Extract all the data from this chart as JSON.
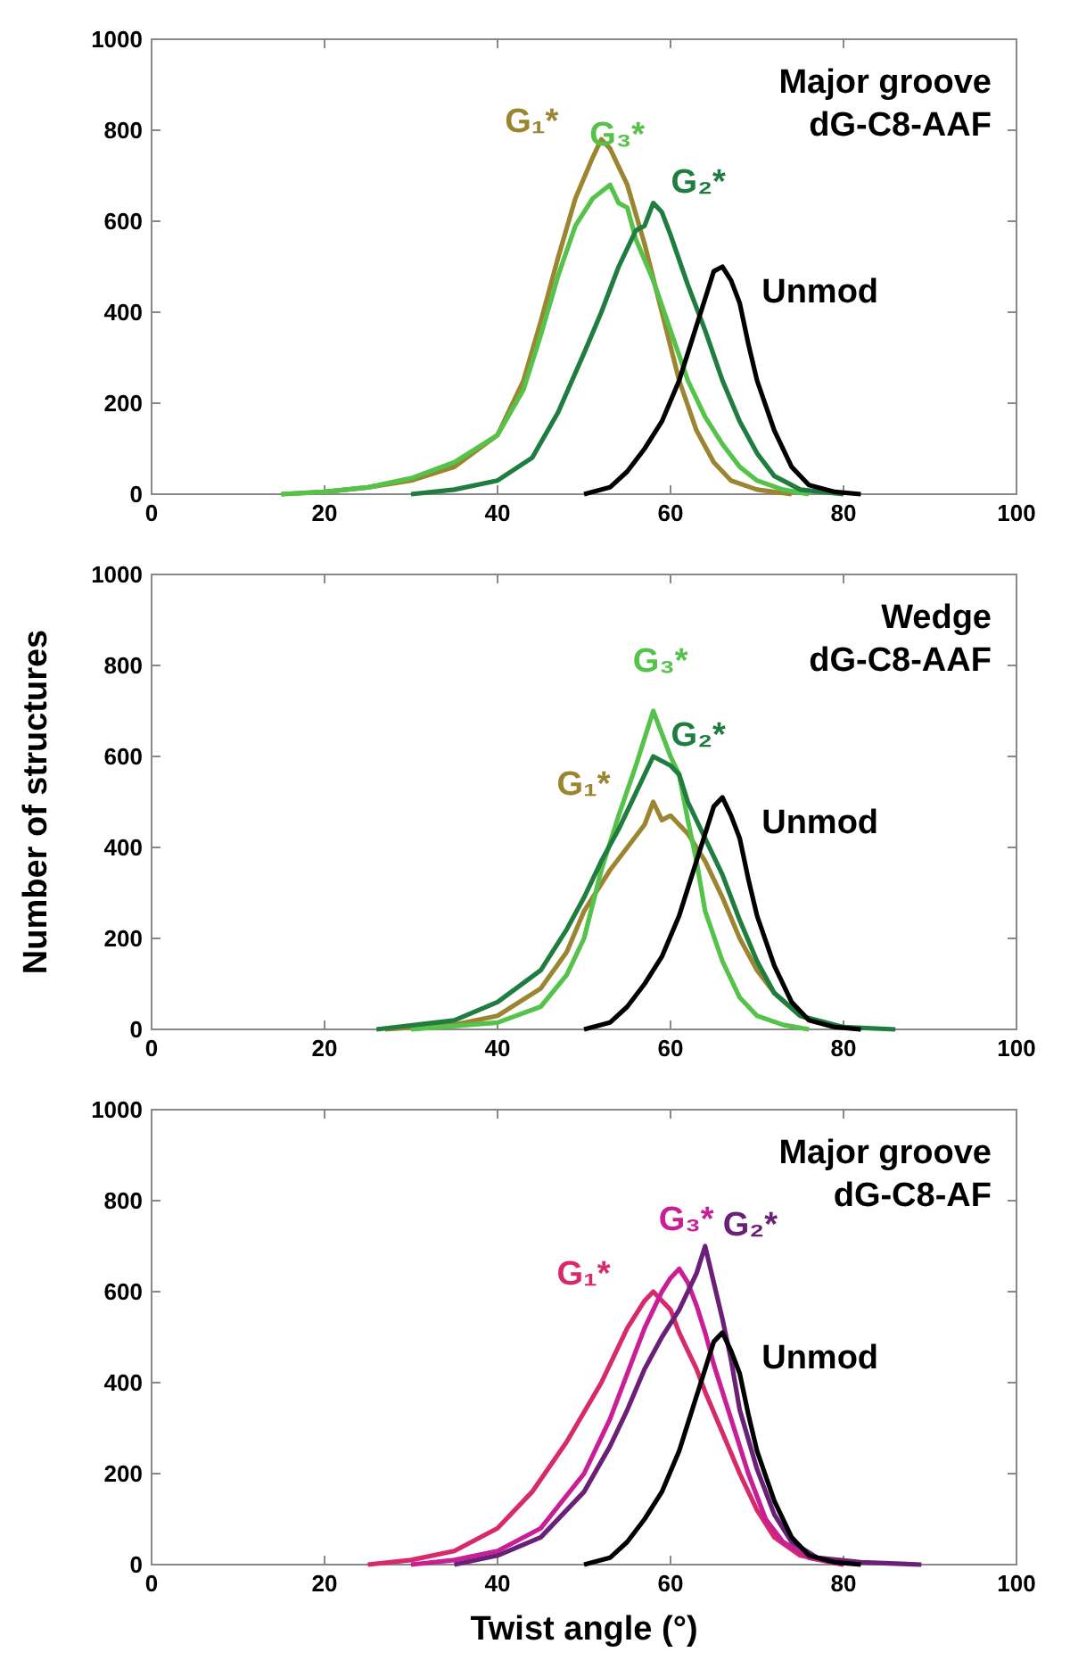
{
  "chart_data": [
    {
      "type": "line",
      "annotations": [
        "Major groove",
        "dG-C8-AAF"
      ],
      "xlim": [
        0,
        100
      ],
      "ylim": [
        0,
        1000
      ],
      "xticks": [
        0,
        20,
        40,
        60,
        80,
        100
      ],
      "yticks": [
        0,
        200,
        400,
        600,
        800,
        1000
      ],
      "grid": false,
      "series": [
        {
          "name": "G₁*",
          "color": "#9b8530",
          "x": [
            15,
            20,
            25,
            30,
            35,
            40,
            43,
            45,
            47,
            49,
            51,
            52,
            53,
            54,
            55,
            57,
            59,
            61,
            63,
            65,
            67,
            70,
            74
          ],
          "values": [
            0,
            5,
            15,
            30,
            60,
            130,
            250,
            380,
            520,
            650,
            740,
            780,
            760,
            720,
            680,
            550,
            400,
            250,
            140,
            70,
            30,
            10,
            0
          ]
        },
        {
          "name": "G₃*",
          "color": "#55c24a",
          "x": [
            15,
            20,
            25,
            30,
            35,
            40,
            43,
            45,
            47,
            49,
            51,
            53,
            54,
            55,
            56,
            58,
            60,
            62,
            64,
            66,
            68,
            70,
            73,
            76
          ],
          "values": [
            0,
            5,
            15,
            35,
            70,
            130,
            230,
            350,
            480,
            590,
            650,
            680,
            640,
            630,
            560,
            470,
            360,
            250,
            170,
            110,
            60,
            30,
            10,
            0
          ]
        },
        {
          "name": "G₂*",
          "color": "#1f7d3f",
          "x": [
            30,
            35,
            40,
            44,
            47,
            50,
            52,
            54,
            56,
            57,
            58,
            59,
            60,
            62,
            64,
            66,
            68,
            70,
            72,
            75,
            80
          ],
          "values": [
            0,
            10,
            30,
            80,
            180,
            310,
            400,
            500,
            580,
            590,
            640,
            620,
            570,
            460,
            360,
            250,
            160,
            90,
            40,
            10,
            0
          ]
        },
        {
          "name": "Unmod",
          "color": "#000000",
          "x": [
            50,
            53,
            55,
            57,
            59,
            61,
            62,
            63,
            64,
            65,
            66,
            67,
            68,
            69,
            70,
            72,
            74,
            76,
            79,
            82
          ],
          "values": [
            0,
            15,
            50,
            100,
            160,
            250,
            310,
            370,
            430,
            490,
            500,
            470,
            420,
            330,
            250,
            140,
            60,
            20,
            5,
            0
          ]
        }
      ]
    },
    {
      "type": "line",
      "ylabel": "Number of structures",
      "annotations": [
        "Wedge",
        "dG-C8-AAF"
      ],
      "xlim": [
        0,
        100
      ],
      "ylim": [
        0,
        1000
      ],
      "xticks": [
        0,
        20,
        40,
        60,
        80,
        100
      ],
      "yticks": [
        0,
        200,
        400,
        600,
        800,
        1000
      ],
      "grid": false,
      "series": [
        {
          "name": "G₁*",
          "color": "#9b8530",
          "x": [
            27,
            35,
            40,
            45,
            48,
            50,
            53,
            55,
            57,
            58,
            59,
            60,
            62,
            64,
            66,
            68,
            70,
            72,
            75,
            78,
            82
          ],
          "values": [
            0,
            10,
            30,
            90,
            170,
            260,
            350,
            400,
            450,
            500,
            460,
            470,
            430,
            370,
            290,
            200,
            130,
            80,
            30,
            10,
            0
          ]
        },
        {
          "name": "G₃*",
          "color": "#55c24a",
          "x": [
            30,
            40,
            45,
            48,
            50,
            52,
            54,
            56,
            57,
            58,
            59,
            60,
            61,
            62,
            63,
            64,
            66,
            68,
            70,
            73,
            76
          ],
          "values": [
            0,
            15,
            50,
            120,
            200,
            350,
            470,
            580,
            640,
            700,
            650,
            600,
            560,
            460,
            370,
            260,
            150,
            70,
            30,
            10,
            0
          ]
        },
        {
          "name": "G₂*",
          "color": "#1f7d3f",
          "x": [
            26,
            35,
            40,
            45,
            48,
            50,
            52,
            54,
            56,
            58,
            60,
            61,
            62,
            64,
            66,
            68,
            70,
            72,
            75,
            80,
            86
          ],
          "values": [
            0,
            20,
            60,
            130,
            220,
            290,
            370,
            440,
            520,
            600,
            580,
            560,
            500,
            420,
            340,
            240,
            150,
            80,
            30,
            5,
            0
          ]
        },
        {
          "name": "Unmod",
          "color": "#000000",
          "x": [
            50,
            53,
            55,
            57,
            59,
            61,
            62,
            63,
            64,
            65,
            66,
            67,
            68,
            69,
            70,
            72,
            74,
            76,
            79,
            82
          ],
          "values": [
            0,
            15,
            50,
            100,
            160,
            250,
            310,
            370,
            430,
            490,
            510,
            470,
            420,
            330,
            250,
            140,
            60,
            20,
            5,
            0
          ]
        }
      ]
    },
    {
      "type": "line",
      "xlabel": "Twist angle (°)",
      "annotations": [
        "Major groove",
        "dG-C8-AF"
      ],
      "xlim": [
        0,
        100
      ],
      "ylim": [
        0,
        1000
      ],
      "xticks": [
        0,
        20,
        40,
        60,
        80,
        100
      ],
      "yticks": [
        0,
        200,
        400,
        600,
        800,
        1000
      ],
      "grid": false,
      "series": [
        {
          "name": "G₁*",
          "color": "#d62a6a",
          "x": [
            25,
            30,
            35,
            40,
            44,
            48,
            52,
            55,
            57,
            58,
            60,
            61,
            62,
            63,
            64,
            66,
            68,
            70,
            72,
            75,
            80
          ],
          "values": [
            0,
            10,
            30,
            80,
            160,
            270,
            400,
            520,
            580,
            600,
            560,
            510,
            470,
            430,
            380,
            290,
            200,
            120,
            60,
            20,
            0
          ]
        },
        {
          "name": "G₃*",
          "color": "#c81e96",
          "x": [
            30,
            35,
            40,
            45,
            50,
            53,
            55,
            57,
            59,
            60,
            61,
            62,
            63,
            64,
            65,
            67,
            69,
            71,
            73,
            76,
            80
          ],
          "values": [
            0,
            10,
            30,
            80,
            200,
            320,
            420,
            520,
            600,
            630,
            650,
            620,
            570,
            510,
            440,
            320,
            200,
            100,
            50,
            15,
            0
          ]
        },
        {
          "name": "G₂*",
          "color": "#6a2077",
          "x": [
            35,
            40,
            45,
            50,
            53,
            55,
            57,
            59,
            61,
            63,
            64,
            65,
            66,
            67,
            68,
            70,
            72,
            74,
            77,
            82,
            89
          ],
          "values": [
            0,
            20,
            60,
            160,
            260,
            340,
            430,
            500,
            560,
            640,
            700,
            620,
            540,
            450,
            340,
            210,
            110,
            50,
            15,
            5,
            0
          ]
        },
        {
          "name": "Unmod",
          "color": "#000000",
          "x": [
            50,
            53,
            55,
            57,
            59,
            61,
            62,
            63,
            64,
            65,
            66,
            67,
            68,
            69,
            70,
            72,
            74,
            76,
            79,
            82
          ],
          "values": [
            0,
            15,
            50,
            100,
            160,
            250,
            310,
            370,
            430,
            490,
            510,
            470,
            420,
            330,
            250,
            140,
            60,
            20,
            5,
            0
          ]
        }
      ]
    }
  ]
}
